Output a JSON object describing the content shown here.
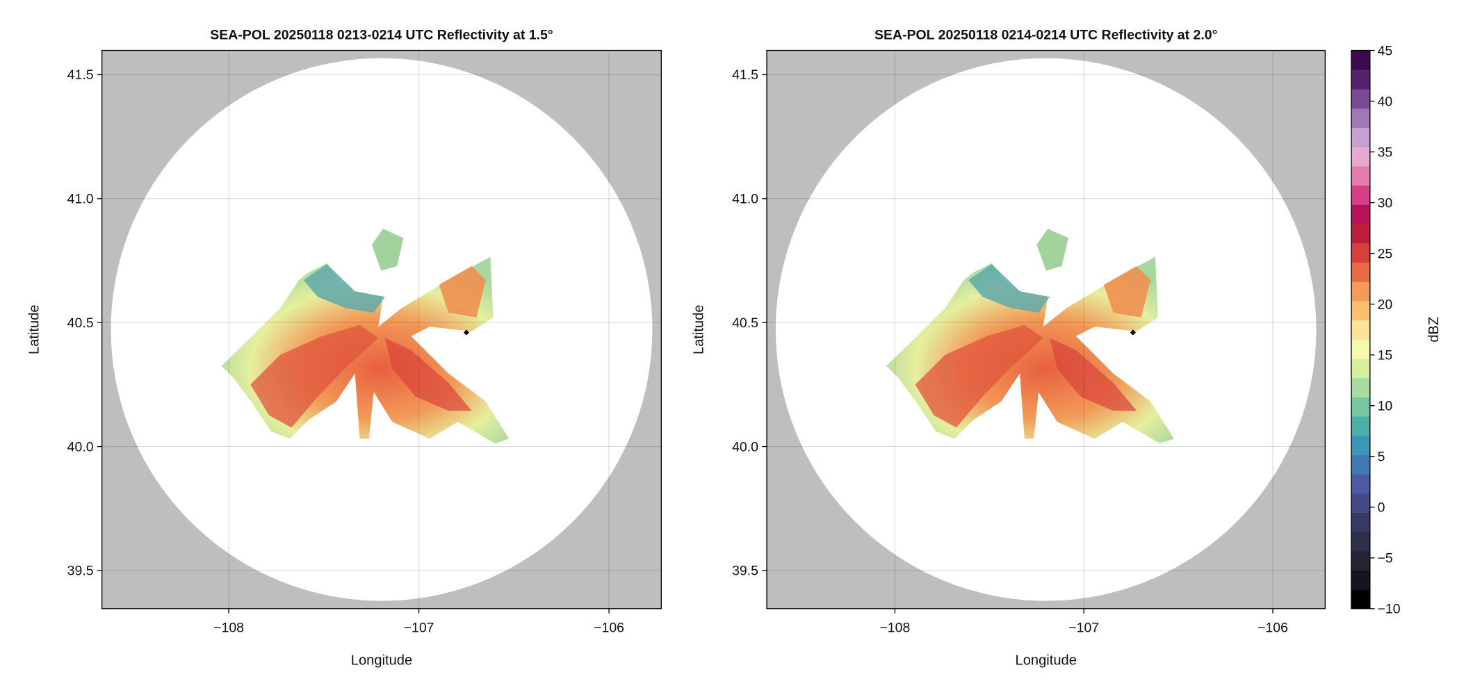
{
  "chart_data": [
    {
      "type": "radar-ppi",
      "title": "SEA-POL 20250118 0213-0214 UTC Reflectivity at 1.5°",
      "x_label": "Longitude",
      "y_label": "Latitude",
      "xlim": [
        -108.667,
        -105.725
      ],
      "ylim": [
        39.346,
        41.598
      ],
      "xticks": [
        {
          "value": -108,
          "label": "−108"
        },
        {
          "value": -107,
          "label": "−107"
        },
        {
          "value": -106,
          "label": "−106"
        }
      ],
      "yticks": [
        39.5,
        {
          "value": 40,
          "label": "40.0"
        },
        40.5,
        {
          "value": 41,
          "label": "41.0"
        },
        41.5
      ],
      "grid": true,
      "points": {
        "x": [
          -106.75
        ],
        "y": [
          40.46
        ],
        "color": "#000000"
      }
    },
    {
      "type": "radar-ppi",
      "title": "SEA-POL 20250118 0214-0214 UTC Reflectivity at 2.0°",
      "x_label": "Longitude",
      "y_label": "Latitude",
      "xlim": [
        -108.678,
        -105.723
      ],
      "ylim": [
        39.346,
        41.598
      ],
      "xticks": [
        {
          "value": -108,
          "label": "−108"
        },
        {
          "value": -107,
          "label": "−107"
        },
        {
          "value": -106,
          "label": "−106"
        }
      ],
      "yticks": [
        39.5,
        {
          "value": 40,
          "label": "40.0"
        },
        40.5,
        {
          "value": 41,
          "label": "41.0"
        },
        41.5
      ],
      "grid": true,
      "points": {
        "x": [
          -106.74
        ],
        "y": [
          40.46
        ],
        "color": "#000000"
      },
      "colorbar": {
        "label": "dBZ",
        "lim": [
          -10,
          45
        ],
        "ticks": [
          {
            "value": -10,
            "label": "−10"
          },
          {
            "value": -5,
            "label": "−5"
          },
          0,
          5,
          10,
          15,
          20,
          25,
          30,
          35,
          40,
          45
        ],
        "colors": [
          "#000000",
          "#14141c",
          "#232331",
          "#2e2f48",
          "#363a62",
          "#414a85",
          "#4a5aa6",
          "#3f7ab5",
          "#3b97b7",
          "#4cb0aa",
          "#79c6a4",
          "#a9dba0",
          "#d7ee9d",
          "#f5f8b0",
          "#fde39a",
          "#fbbf6f",
          "#f59a57",
          "#e86a43",
          "#d6403a",
          "#bd1e3d",
          "#b8135a",
          "#d63f87",
          "#e67bae",
          "#e8a9cf",
          "#c79fd1",
          "#9f78b5",
          "#7a4a96",
          "#55226e",
          "#3d0a4f"
        ]
      }
    }
  ]
}
